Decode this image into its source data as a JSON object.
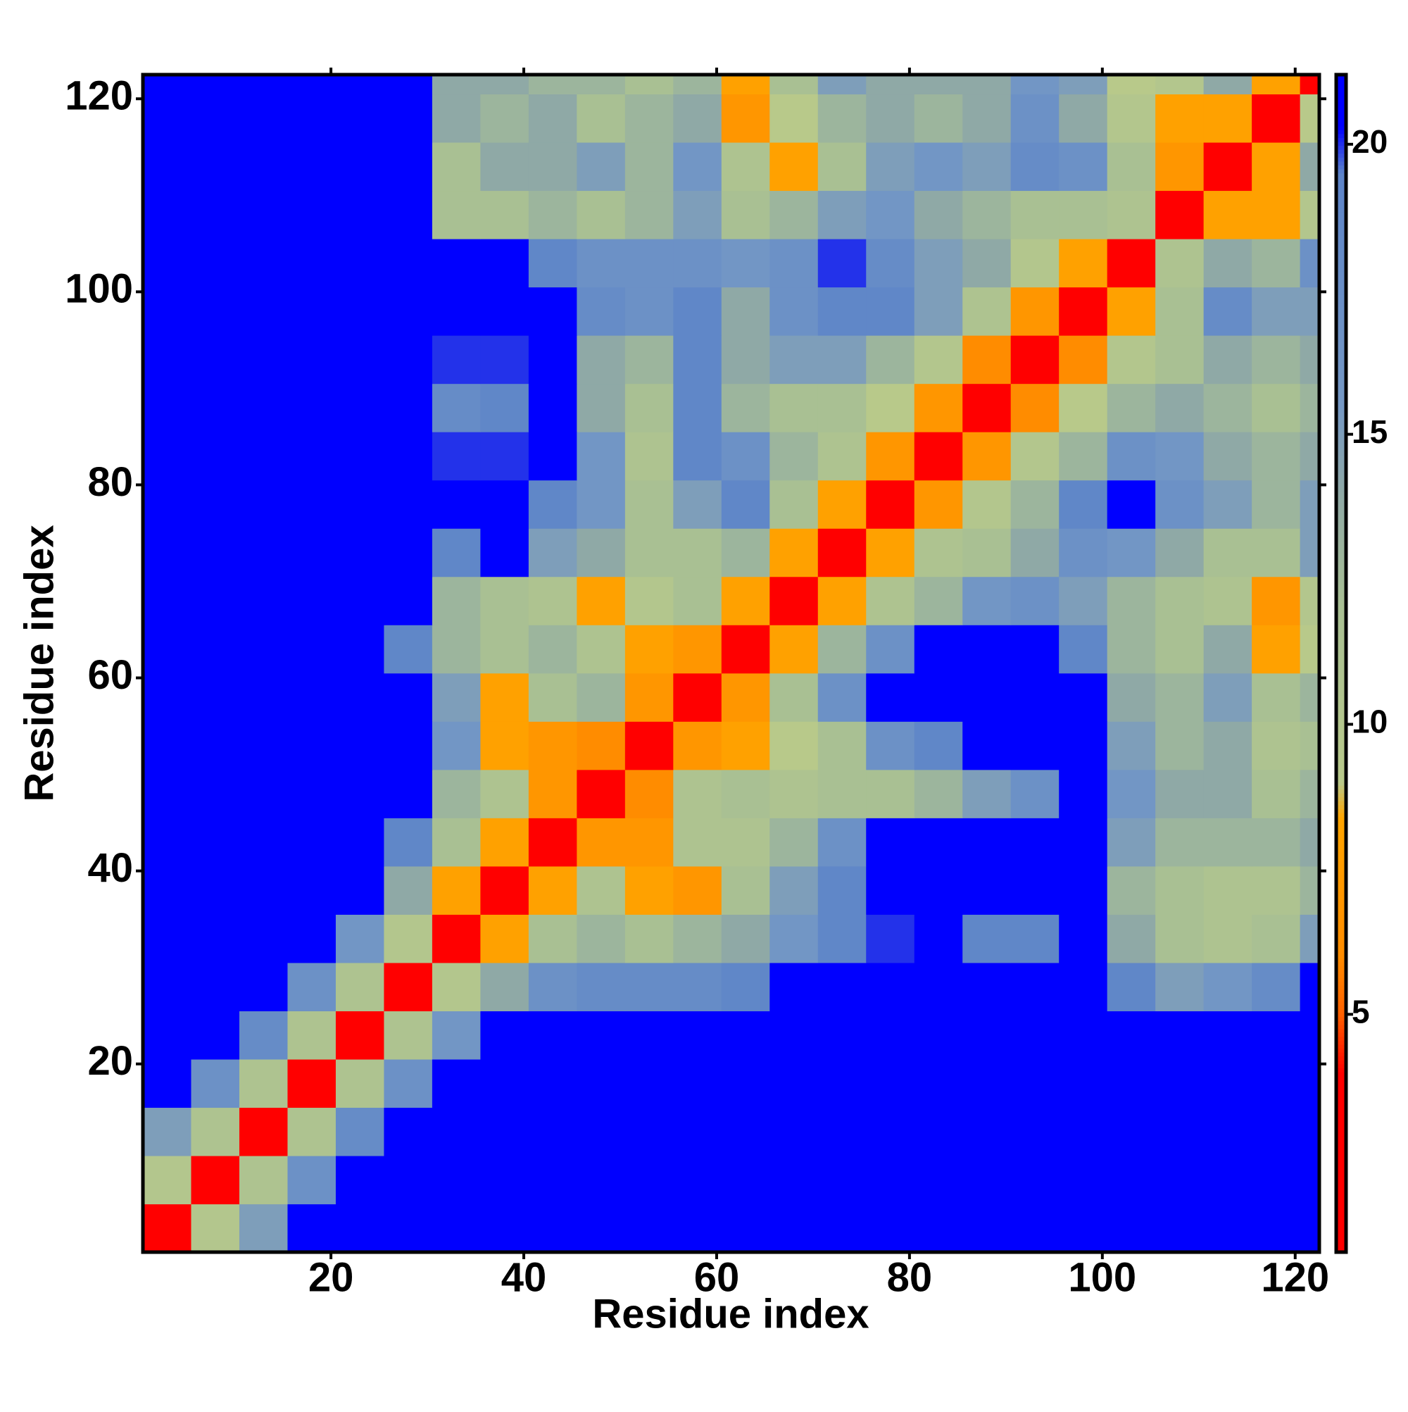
{
  "chart_data": {
    "type": "heatmap",
    "xlabel": "Residue index",
    "ylabel": "Residue index",
    "xbins": [
      0.5,
      5.5,
      10.5,
      15.5,
      20.5,
      25.5,
      30.5,
      35.5,
      40.5,
      45.5,
      50.5,
      55.5,
      60.5,
      65.5,
      70.5,
      75.5,
      80.5,
      85.5,
      90.5,
      95.5,
      100.5,
      105.5,
      110.5,
      115.5,
      120.5,
      122.5
    ],
    "ybins": [
      0.5,
      5.5,
      10.5,
      15.5,
      20.5,
      25.5,
      30.5,
      35.5,
      40.5,
      45.5,
      50.5,
      55.5,
      60.5,
      65.5,
      70.5,
      75.5,
      80.5,
      85.5,
      90.5,
      95.5,
      100.5,
      105.5,
      110.5,
      115.5,
      120.5,
      122.5
    ],
    "values": [
      [
        4,
        10,
        15,
        21,
        21,
        21,
        21,
        21,
        21,
        21,
        21,
        21,
        21,
        21,
        21,
        21,
        21,
        21,
        21,
        21,
        21,
        21,
        21,
        21,
        21
      ],
      [
        10,
        4,
        11,
        17,
        21,
        21,
        21,
        21,
        21,
        21,
        21,
        21,
        21,
        21,
        21,
        21,
        21,
        21,
        21,
        21,
        21,
        21,
        21,
        21,
        21
      ],
      [
        15,
        11,
        4,
        11,
        18,
        21,
        21,
        21,
        21,
        21,
        21,
        21,
        21,
        21,
        21,
        21,
        21,
        21,
        21,
        21,
        21,
        21,
        21,
        21,
        21
      ],
      [
        21,
        17,
        11,
        4,
        11,
        17,
        21,
        21,
        21,
        21,
        21,
        21,
        21,
        21,
        21,
        21,
        21,
        21,
        21,
        21,
        21,
        21,
        21,
        21,
        21
      ],
      [
        21,
        21,
        18,
        11,
        4,
        11,
        16,
        21,
        21,
        21,
        21,
        21,
        21,
        21,
        21,
        21,
        21,
        21,
        21,
        21,
        21,
        21,
        21,
        21,
        21
      ],
      [
        21,
        21,
        21,
        17,
        11,
        4,
        10,
        14,
        17,
        18,
        18,
        18,
        19,
        21,
        21,
        21,
        21,
        21,
        21,
        21,
        19,
        15,
        16,
        18,
        21
      ],
      [
        21,
        21,
        21,
        21,
        16,
        10,
        4,
        8,
        12,
        13,
        12,
        13,
        14,
        16,
        19,
        20,
        21,
        19,
        19,
        21,
        14,
        12,
        11,
        12,
        15
      ],
      [
        21,
        21,
        21,
        21,
        21,
        14,
        8,
        4,
        8,
        11,
        8,
        7,
        12,
        15,
        19,
        21,
        21,
        21,
        21,
        21,
        13,
        12,
        11,
        11,
        13
      ],
      [
        21,
        21,
        21,
        21,
        21,
        19,
        12,
        8,
        4,
        7,
        7,
        11,
        11,
        13,
        17,
        21,
        21,
        21,
        21,
        21,
        15,
        13,
        13,
        13,
        14
      ],
      [
        21,
        21,
        21,
        21,
        21,
        21,
        13,
        11,
        7,
        3,
        6,
        11,
        12,
        11,
        12,
        12,
        13,
        15,
        17,
        21,
        16,
        14,
        14,
        12,
        13
      ],
      [
        21,
        21,
        21,
        21,
        21,
        21,
        16,
        8,
        7,
        6,
        4,
        7,
        8,
        9,
        12,
        17,
        19,
        21,
        21,
        21,
        15,
        13,
        14,
        11,
        12
      ],
      [
        21,
        21,
        21,
        21,
        21,
        21,
        15,
        8,
        12,
        13,
        7,
        4,
        7,
        12,
        17,
        21,
        21,
        21,
        21,
        21,
        14,
        13,
        15,
        12,
        13
      ],
      [
        21,
        21,
        21,
        21,
        21,
        19,
        13,
        12,
        13,
        11,
        8,
        7,
        4,
        8,
        13,
        17,
        21,
        21,
        21,
        19,
        13,
        12,
        14,
        8,
        9
      ],
      [
        21,
        21,
        21,
        21,
        21,
        21,
        13,
        12,
        11,
        8,
        10,
        12,
        8,
        4,
        8,
        11,
        13,
        16,
        17,
        15,
        13,
        12,
        11,
        7,
        10
      ],
      [
        21,
        21,
        21,
        21,
        21,
        21,
        19,
        21,
        15,
        14,
        12,
        12,
        13,
        8,
        4,
        8,
        11,
        12,
        14,
        17,
        16,
        14,
        12,
        12,
        15
      ],
      [
        21,
        21,
        21,
        21,
        21,
        21,
        21,
        21,
        19,
        16,
        12,
        15,
        19,
        12,
        8,
        4,
        7,
        10,
        13,
        19,
        21,
        17,
        15,
        13,
        15
      ],
      [
        21,
        21,
        21,
        21,
        21,
        21,
        20,
        20,
        21,
        16,
        11,
        19,
        17,
        13,
        11,
        7,
        4,
        7,
        10,
        13,
        17,
        16,
        14,
        13,
        14
      ],
      [
        21,
        21,
        21,
        21,
        21,
        21,
        18,
        19,
        21,
        14,
        12,
        19,
        13,
        12,
        12,
        9,
        7,
        4,
        6,
        9,
        13,
        14,
        13,
        12,
        13
      ],
      [
        21,
        21,
        21,
        21,
        21,
        21,
        20,
        20,
        21,
        14,
        13,
        19,
        14,
        15,
        15,
        13,
        10,
        6,
        4,
        6,
        10,
        12,
        14,
        13,
        14
      ],
      [
        21,
        21,
        21,
        21,
        21,
        21,
        21,
        21,
        21,
        18,
        17,
        19,
        14,
        17,
        19,
        19,
        15,
        11,
        7,
        4,
        8,
        12,
        18,
        15,
        15
      ],
      [
        21,
        21,
        21,
        21,
        21,
        21,
        21,
        21,
        19,
        17,
        17,
        17,
        16,
        17,
        20,
        18,
        15,
        14,
        10,
        8,
        4,
        11,
        14,
        13,
        17
      ],
      [
        21,
        21,
        21,
        21,
        21,
        21,
        12,
        12,
        13,
        12,
        13,
        15,
        12,
        13,
        15,
        16,
        14,
        13,
        12,
        12,
        11,
        4,
        8,
        8,
        10
      ],
      [
        21,
        21,
        21,
        21,
        21,
        21,
        12,
        14,
        14,
        15,
        13,
        16,
        11,
        8,
        12,
        15,
        16,
        15,
        18,
        17,
        12,
        7,
        4,
        8,
        14
      ],
      [
        21,
        21,
        21,
        21,
        21,
        21,
        14,
        13,
        14,
        12,
        13,
        14,
        7,
        9,
        13,
        14,
        13,
        14,
        17,
        14,
        10,
        8,
        8,
        4,
        9
      ],
      [
        21,
        21,
        21,
        21,
        21,
        21,
        14,
        14,
        13,
        13,
        12,
        13,
        8,
        12,
        15,
        14,
        14,
        14,
        16,
        15,
        9,
        10,
        14,
        8,
        4
      ]
    ],
    "xlim": [
      0.5,
      122.5
    ],
    "ylim": [
      0.5,
      122.5
    ],
    "xticks": [
      20,
      40,
      60,
      80,
      100,
      120
    ],
    "yticks": [
      20,
      40,
      60,
      80,
      100,
      120
    ],
    "colorbar": {
      "zlim": [
        0.9,
        21.2
      ],
      "ticks": [
        5,
        10,
        15,
        20
      ],
      "colorscale": [
        [
          0.9,
          "#ff0000"
        ],
        [
          4,
          "#ff0000"
        ],
        [
          5,
          "#ff6000"
        ],
        [
          6,
          "#ff8c00"
        ],
        [
          8.4,
          "#ffa500"
        ],
        [
          9,
          "#b8c98a"
        ],
        [
          12,
          "#a9c093"
        ],
        [
          14,
          "#8fa9a6"
        ],
        [
          15.5,
          "#7598c4"
        ],
        [
          19.5,
          "#5d84c8"
        ],
        [
          20.3,
          "#0000ff"
        ],
        [
          21.2,
          "#0000ff"
        ]
      ]
    }
  }
}
